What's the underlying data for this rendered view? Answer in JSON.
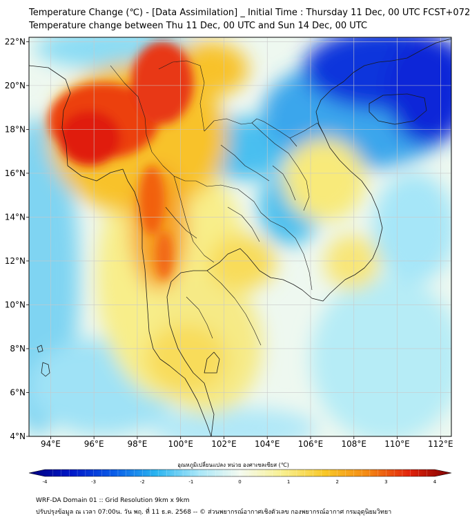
{
  "header": {
    "title_line1": "Temperature Change (℃) - [Data Assimilation] _ Initial Time : Thursday 11 Dec, 00 UTC FCST+072",
    "title_line2": "Temperature change between Thu 11 Dec, 00 UTC and Sun 14 Dec, 00 UTC"
  },
  "map": {
    "lon_ticks": [
      "94°E",
      "96°E",
      "98°E",
      "100°E",
      "102°E",
      "104°E",
      "106°E",
      "108°E",
      "110°E",
      "112°E"
    ],
    "lat_ticks": [
      "22°N",
      "20°N",
      "18°N",
      "16°N",
      "14°N",
      "12°N",
      "10°N",
      "8°N",
      "6°N",
      "4°N"
    ],
    "lon_range": [
      93,
      112.5
    ],
    "lat_range": [
      4,
      22.2
    ],
    "colors": {
      "strong_cool": "#0a28d8",
      "cool": "#22a4ec",
      "slight_cool": "#9fe2f6",
      "neutral": "#eef8f0",
      "slight_warm": "#f8ee8a",
      "warm": "#f8c22c",
      "hot": "#f26010",
      "very_hot": "#e01e0e"
    }
  },
  "colorbar": {
    "label": "อุณหภูมิเปลี่ยนแปลง หน่วย องศาเซลเซียส (℃)",
    "ticks": [
      "-4",
      "-3",
      "-2",
      "-1",
      "0",
      "1",
      "2",
      "3",
      "4"
    ],
    "min": -4,
    "max": 4,
    "colors": [
      "#00007e",
      "#0018c8",
      "#0a5ce8",
      "#2ab4f0",
      "#a6e6f8",
      "#f4faf0",
      "#f8f090",
      "#f8c828",
      "#f48a14",
      "#e2240c",
      "#7e0000"
    ]
  },
  "footer": {
    "line1": "WRF-DA Domain 01 :: Grid Resolution 9km x 9km",
    "line2": "ปรับปรุงข้อมูล ณ เวลา 07:00น. วัน พฤ. ที่ 11 ธ.ค. 2568 -- © ส่วนพยากรณ์อากาศเชิงตัวเลข กองพยากรณ์อากาศ กรมอุตุนิยมวิทยา"
  }
}
